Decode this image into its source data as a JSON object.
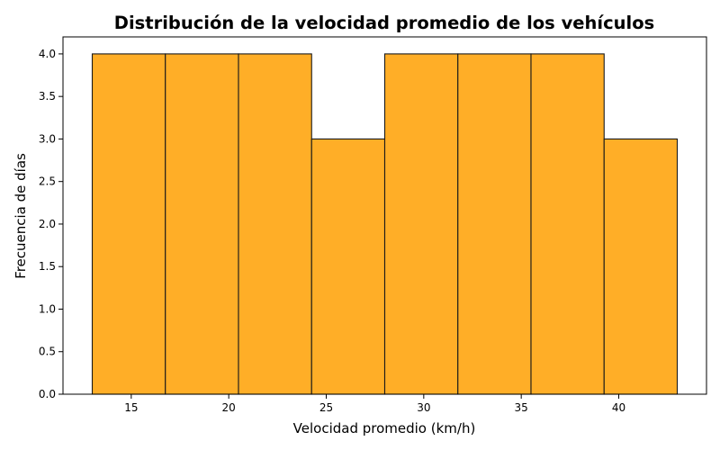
{
  "chart_data": {
    "type": "bar",
    "title": "Distribución de la velocidad promedio de los vehículos",
    "xlabel": "Velocidad promedio (km/h)",
    "ylabel": "Frecuencia de días",
    "bins": [
      {
        "start": 13.0,
        "end": 16.75,
        "value": 4
      },
      {
        "start": 16.75,
        "end": 20.5,
        "value": 4
      },
      {
        "start": 20.5,
        "end": 24.25,
        "value": 4
      },
      {
        "start": 24.25,
        "end": 28.0,
        "value": 3
      },
      {
        "start": 28.0,
        "end": 31.75,
        "value": 4
      },
      {
        "start": 31.75,
        "end": 35.5,
        "value": 4
      },
      {
        "start": 35.5,
        "end": 39.25,
        "value": 4
      },
      {
        "start": 39.25,
        "end": 43.0,
        "value": 3
      }
    ],
    "xlim": [
      11.5,
      44.5
    ],
    "ylim": [
      0,
      4.2
    ],
    "xticks": [
      15,
      20,
      25,
      30,
      35,
      40
    ],
    "xtick_labels": [
      "15",
      "20",
      "25",
      "30",
      "35",
      "40"
    ],
    "yticks": [
      0,
      0.5,
      1.0,
      1.5,
      2.0,
      2.5,
      3.0,
      3.5,
      4.0
    ],
    "ytick_labels": [
      "0.0",
      "0.5",
      "1.0",
      "1.5",
      "2.0",
      "2.5",
      "3.0",
      "3.5",
      "4.0"
    ],
    "bar_color": "#ffae27",
    "edge_color": "#1a1a1a",
    "grid": false,
    "legend": "none"
  }
}
